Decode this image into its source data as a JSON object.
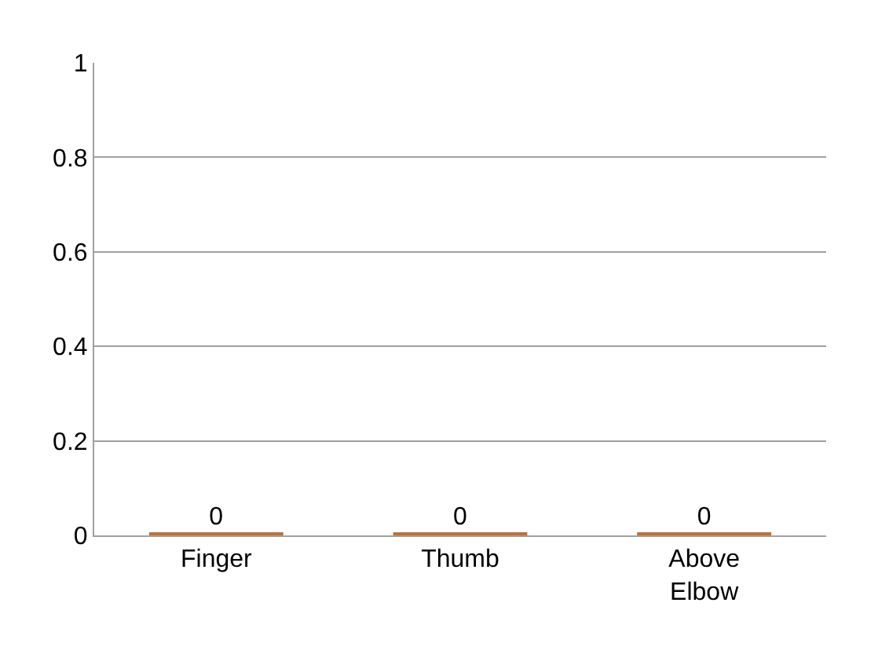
{
  "chart_data": {
    "type": "bar",
    "categories": [
      "Finger",
      "Thumb",
      "Above Elbow"
    ],
    "values": [
      0,
      0,
      0
    ],
    "color": "#c07035",
    "data_labels": true,
    "ylim": [
      0,
      1
    ],
    "yticks": [
      0,
      0.2,
      0.4,
      0.6,
      0.8,
      1
    ],
    "grid": "y",
    "legend": false
  }
}
